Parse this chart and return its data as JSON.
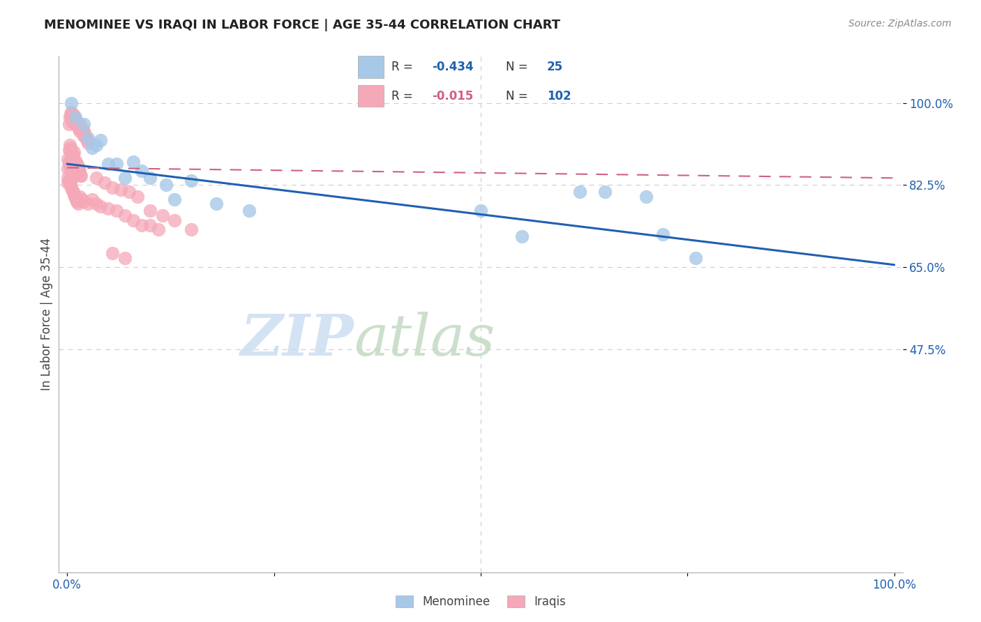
{
  "title": "MENOMINEE VS IRAQI IN LABOR FORCE | AGE 35-44 CORRELATION CHART",
  "source_text": "Source: ZipAtlas.com",
  "ylabel": "In Labor Force | Age 35-44",
  "xlim_data": [
    0.0,
    1.0
  ],
  "ylim_data": [
    0.0,
    1.1
  ],
  "ytick_positions": [
    0.475,
    0.65,
    0.825,
    1.0
  ],
  "ytick_labels": [
    "47.5%",
    "65.0%",
    "82.5%",
    "100.0%"
  ],
  "xtick_positions": [
    0.0,
    0.25,
    0.5,
    0.75,
    1.0
  ],
  "xticklabels": [
    "0.0%",
    "",
    "",
    "",
    "100.0%"
  ],
  "blue_N": 25,
  "pink_N": 102,
  "blue_R": "-0.434",
  "pink_R": "-0.015",
  "blue_color": "#A8C8E8",
  "pink_color": "#F5A8B8",
  "blue_line_color": "#2060B0",
  "pink_line_color": "#D06080",
  "text_color": "#2060B0",
  "label_color": "#444444",
  "grid_color": "#CCCCCC",
  "spine_color": "#AAAAAA",
  "watermark_zip_color": "#C8DCF0",
  "watermark_atlas_color": "#C0D8C0",
  "legend_label_blue": "Menominee",
  "legend_label_pink": "Iraqis",
  "blue_line_intercept": 0.87,
  "blue_line_slope": -0.215,
  "pink_line_intercept": 0.862,
  "pink_line_slope": -0.022,
  "blue_x": [
    0.005,
    0.01,
    0.02,
    0.025,
    0.03,
    0.035,
    0.04,
    0.05,
    0.06,
    0.07,
    0.08,
    0.09,
    0.1,
    0.12,
    0.13,
    0.15,
    0.18,
    0.22,
    0.5,
    0.55,
    0.62,
    0.65,
    0.7,
    0.72,
    0.76
  ],
  "blue_y": [
    1.0,
    0.97,
    0.955,
    0.925,
    0.905,
    0.91,
    0.92,
    0.87,
    0.87,
    0.84,
    0.875,
    0.855,
    0.84,
    0.825,
    0.795,
    0.835,
    0.785,
    0.77,
    0.77,
    0.715,
    0.81,
    0.81,
    0.8,
    0.72,
    0.67
  ],
  "pink_x": [
    0.002,
    0.003,
    0.004,
    0.005,
    0.005,
    0.006,
    0.007,
    0.007,
    0.008,
    0.009,
    0.01,
    0.01,
    0.011,
    0.012,
    0.013,
    0.014,
    0.015,
    0.015,
    0.016,
    0.017,
    0.018,
    0.018,
    0.019,
    0.02,
    0.02,
    0.021,
    0.022,
    0.023,
    0.024,
    0.025,
    0.001,
    0.002,
    0.003,
    0.004,
    0.004,
    0.005,
    0.005,
    0.006,
    0.007,
    0.008,
    0.008,
    0.009,
    0.01,
    0.011,
    0.012,
    0.013,
    0.014,
    0.015,
    0.016,
    0.017,
    0.001,
    0.002,
    0.002,
    0.003,
    0.004,
    0.005,
    0.005,
    0.006,
    0.007,
    0.008,
    0.001,
    0.001,
    0.002,
    0.003,
    0.003,
    0.004,
    0.004,
    0.005,
    0.006,
    0.007,
    0.008,
    0.009,
    0.01,
    0.011,
    0.012,
    0.013,
    0.015,
    0.018,
    0.02,
    0.025,
    0.03,
    0.035,
    0.04,
    0.05,
    0.06,
    0.07,
    0.08,
    0.09,
    0.1,
    0.11,
    0.035,
    0.045,
    0.055,
    0.065,
    0.075,
    0.085,
    0.1,
    0.115,
    0.13,
    0.15,
    0.055,
    0.07
  ],
  "pink_y": [
    0.955,
    0.97,
    0.975,
    0.98,
    0.97,
    0.96,
    0.965,
    0.975,
    0.97,
    0.96,
    0.955,
    0.965,
    0.96,
    0.955,
    0.95,
    0.945,
    0.94,
    0.955,
    0.95,
    0.945,
    0.94,
    0.945,
    0.935,
    0.93,
    0.94,
    0.935,
    0.93,
    0.925,
    0.92,
    0.915,
    0.88,
    0.9,
    0.91,
    0.895,
    0.905,
    0.9,
    0.895,
    0.885,
    0.89,
    0.895,
    0.88,
    0.875,
    0.87,
    0.875,
    0.87,
    0.865,
    0.86,
    0.855,
    0.845,
    0.845,
    0.86,
    0.87,
    0.875,
    0.865,
    0.86,
    0.855,
    0.865,
    0.855,
    0.85,
    0.845,
    0.83,
    0.84,
    0.835,
    0.83,
    0.835,
    0.825,
    0.83,
    0.82,
    0.815,
    0.81,
    0.805,
    0.8,
    0.8,
    0.795,
    0.79,
    0.785,
    0.8,
    0.795,
    0.79,
    0.785,
    0.795,
    0.785,
    0.78,
    0.775,
    0.77,
    0.76,
    0.75,
    0.74,
    0.74,
    0.73,
    0.84,
    0.83,
    0.82,
    0.815,
    0.81,
    0.8,
    0.77,
    0.76,
    0.75,
    0.73,
    0.68,
    0.67
  ]
}
